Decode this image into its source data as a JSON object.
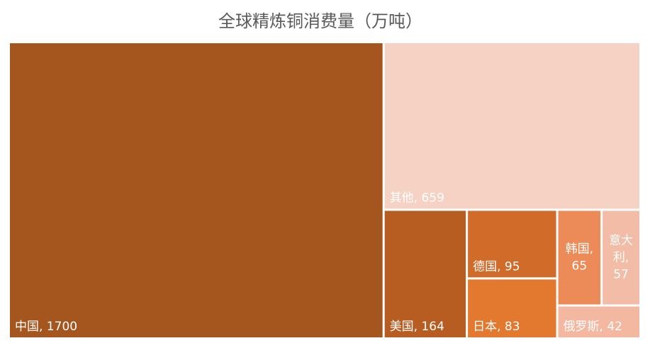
{
  "chart_data": {
    "type": "treemap",
    "title": "全球精炼铜消费量（万吨）",
    "categories": [
      "中国",
      "其他",
      "美国",
      "德国",
      "日本",
      "韩国",
      "意大利",
      "俄罗斯"
    ],
    "values": [
      1700,
      659,
      164,
      95,
      83,
      65,
      57,
      42
    ],
    "value_labels": [
      "中国, 1700",
      "其他, 659",
      "美国, 164",
      "德国, 95",
      "日本, 83",
      "韩国, 65",
      "意大利, 57",
      "俄罗斯, 42"
    ],
    "colors": [
      "#a5561f",
      "#f5d2c4",
      "#b75d22",
      "#d06b2a",
      "#e3792f",
      "#ed8b58",
      "#f2bca6",
      "#f4b7a0"
    ]
  }
}
